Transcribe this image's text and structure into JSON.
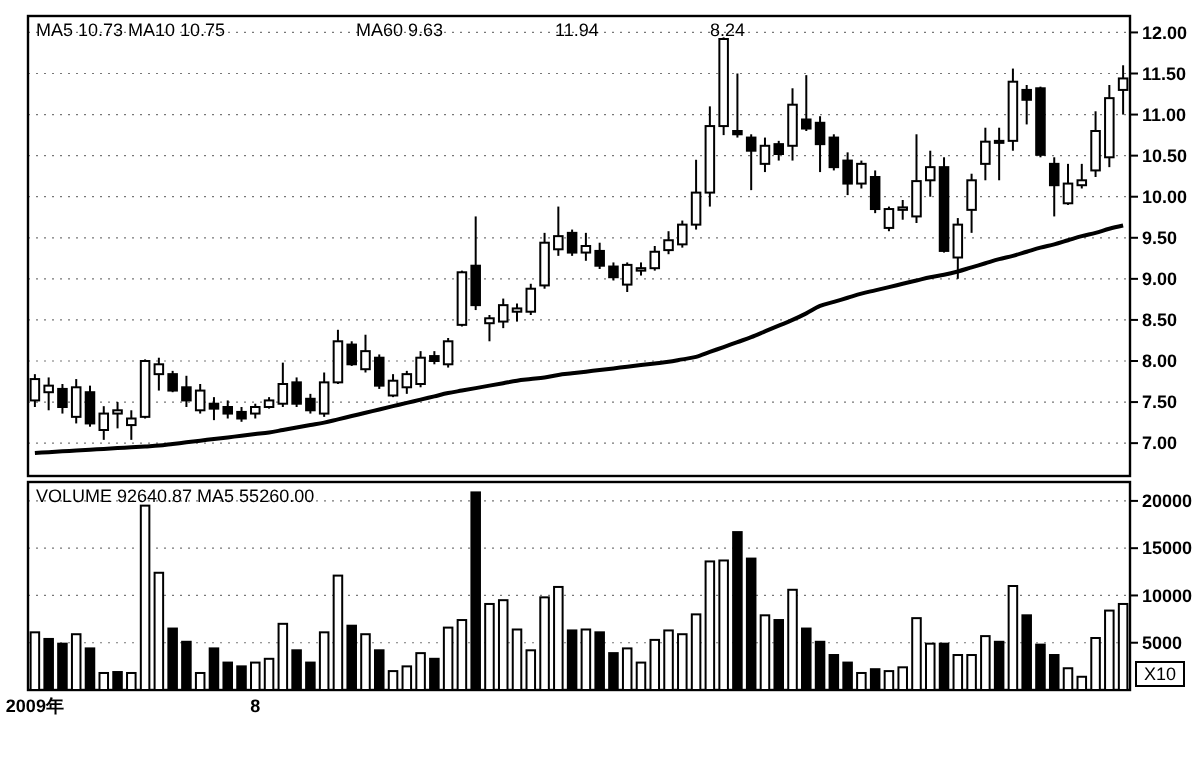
{
  "chart_data": [
    {
      "type": "candlestick",
      "categories": [
        null,
        null,
        null,
        null,
        null,
        null,
        null,
        null,
        null,
        null,
        null,
        null,
        null,
        null,
        null,
        null,
        null,
        null,
        null,
        null,
        null,
        null,
        null,
        null,
        null,
        null,
        null,
        null,
        null,
        null,
        null,
        null,
        null,
        null,
        null,
        null,
        null,
        null,
        null,
        null,
        null,
        null,
        null,
        null,
        null,
        null,
        null,
        null,
        null,
        null,
        null,
        null,
        null,
        null,
        null,
        null,
        null,
        null,
        null,
        null,
        null,
        null,
        null,
        null,
        null,
        null,
        null,
        null,
        null,
        null,
        null,
        null,
        null,
        null,
        null,
        null,
        null,
        null,
        null,
        null
      ],
      "ohlc": [
        [
          7.52,
          7.84,
          7.44,
          7.78
        ],
        [
          7.62,
          7.8,
          7.4,
          7.7
        ],
        [
          7.66,
          7.72,
          7.36,
          7.44
        ],
        [
          7.32,
          7.78,
          7.24,
          7.68
        ],
        [
          7.62,
          7.7,
          7.2,
          7.24
        ],
        [
          7.16,
          7.45,
          7.04,
          7.36
        ],
        [
          7.36,
          7.5,
          7.18,
          7.4
        ],
        [
          7.22,
          7.4,
          7.04,
          7.3
        ],
        [
          7.32,
          8.02,
          7.3,
          8.0
        ],
        [
          7.84,
          8.04,
          7.64,
          7.96
        ],
        [
          7.84,
          7.88,
          7.62,
          7.64
        ],
        [
          7.68,
          7.82,
          7.44,
          7.52
        ],
        [
          7.4,
          7.72,
          7.36,
          7.64
        ],
        [
          7.48,
          7.56,
          7.28,
          7.42
        ],
        [
          7.44,
          7.52,
          7.3,
          7.36
        ],
        [
          7.38,
          7.44,
          7.26,
          7.3
        ],
        [
          7.36,
          7.48,
          7.3,
          7.44
        ],
        [
          7.44,
          7.56,
          7.42,
          7.52
        ],
        [
          7.48,
          7.98,
          7.44,
          7.72
        ],
        [
          7.74,
          7.8,
          7.44,
          7.48
        ],
        [
          7.54,
          7.6,
          7.36,
          7.4
        ],
        [
          7.36,
          7.86,
          7.32,
          7.74
        ],
        [
          7.74,
          8.38,
          7.72,
          8.24
        ],
        [
          8.2,
          8.24,
          7.94,
          7.96
        ],
        [
          7.9,
          8.32,
          7.86,
          8.12
        ],
        [
          8.04,
          8.08,
          7.66,
          7.7
        ],
        [
          7.58,
          7.84,
          7.56,
          7.76
        ],
        [
          7.68,
          7.88,
          7.6,
          7.84
        ],
        [
          7.72,
          8.12,
          7.68,
          8.04
        ],
        [
          8.06,
          8.12,
          7.96,
          8.0
        ],
        [
          7.96,
          8.28,
          7.92,
          8.24
        ],
        [
          8.44,
          9.1,
          8.42,
          9.08
        ],
        [
          9.16,
          9.76,
          8.62,
          8.68
        ],
        [
          8.46,
          8.56,
          8.24,
          8.52
        ],
        [
          8.48,
          8.76,
          8.4,
          8.68
        ],
        [
          8.6,
          8.7,
          8.48,
          8.64
        ],
        [
          8.6,
          8.94,
          8.56,
          8.88
        ],
        [
          8.92,
          9.56,
          8.88,
          9.44
        ],
        [
          9.36,
          9.88,
          9.28,
          9.52
        ],
        [
          9.56,
          9.6,
          9.28,
          9.32
        ],
        [
          9.32,
          9.56,
          9.22,
          9.4
        ],
        [
          9.34,
          9.44,
          9.12,
          9.16
        ],
        [
          9.15,
          9.2,
          8.98,
          9.02
        ],
        [
          8.93,
          9.2,
          8.84,
          9.17
        ],
        [
          9.1,
          9.2,
          9.04,
          9.13
        ],
        [
          9.13,
          9.4,
          9.1,
          9.33
        ],
        [
          9.35,
          9.58,
          9.3,
          9.47
        ],
        [
          9.42,
          9.71,
          9.38,
          9.66
        ],
        [
          9.66,
          10.45,
          9.6,
          10.05
        ],
        [
          10.05,
          11.1,
          9.88,
          10.86
        ],
        [
          10.86,
          11.94,
          10.75,
          11.92
        ],
        [
          10.8,
          11.5,
          10.72,
          10.76
        ],
        [
          10.72,
          10.76,
          10.08,
          10.56
        ],
        [
          10.4,
          10.72,
          10.3,
          10.62
        ],
        [
          10.64,
          10.68,
          10.44,
          10.52
        ],
        [
          10.62,
          11.32,
          10.44,
          11.12
        ],
        [
          10.94,
          11.48,
          10.8,
          10.83
        ],
        [
          10.9,
          10.98,
          10.3,
          10.64
        ],
        [
          10.72,
          10.76,
          10.32,
          10.36
        ],
        [
          10.44,
          10.54,
          10.02,
          10.16
        ],
        [
          10.16,
          10.44,
          10.1,
          10.4
        ],
        [
          10.24,
          10.32,
          9.8,
          9.85
        ],
        [
          9.62,
          9.88,
          9.58,
          9.85
        ],
        [
          9.84,
          9.96,
          9.72,
          9.87
        ],
        [
          9.76,
          10.76,
          9.68,
          10.19
        ],
        [
          10.2,
          10.56,
          10.0,
          10.36
        ],
        [
          10.36,
          10.48,
          9.32,
          9.34
        ],
        [
          9.26,
          9.74,
          9.0,
          9.66
        ],
        [
          9.84,
          10.28,
          9.56,
          10.2
        ],
        [
          10.4,
          10.84,
          10.2,
          10.67
        ],
        [
          10.66,
          10.84,
          10.2,
          10.68
        ],
        [
          10.68,
          11.56,
          10.56,
          11.4
        ],
        [
          11.3,
          11.36,
          10.88,
          11.18
        ],
        [
          11.32,
          11.34,
          10.48,
          10.51
        ],
        [
          10.4,
          10.48,
          9.76,
          10.14
        ],
        [
          9.92,
          10.4,
          9.9,
          10.16
        ],
        [
          10.14,
          10.4,
          10.1,
          10.2
        ],
        [
          10.32,
          11.04,
          10.24,
          10.8
        ],
        [
          10.48,
          11.36,
          10.36,
          11.2
        ],
        [
          11.3,
          11.6,
          11.0,
          11.44
        ]
      ],
      "series": [
        {
          "type": "line",
          "color": "#000000",
          "values": [
            6.88,
            6.89,
            6.9,
            6.91,
            6.92,
            6.93,
            6.94,
            6.95,
            6.96,
            6.97,
            6.99,
            7.01,
            7.03,
            7.05,
            7.07,
            7.09,
            7.11,
            7.13,
            7.16,
            7.19,
            7.22,
            7.25,
            7.29,
            7.33,
            7.37,
            7.41,
            7.45,
            7.49,
            7.53,
            7.57,
            7.61,
            7.64,
            7.67,
            7.7,
            7.73,
            7.76,
            7.78,
            7.8,
            7.83,
            7.85,
            7.87,
            7.89,
            7.91,
            7.93,
            7.95,
            7.97,
            7.99,
            8.02,
            8.05,
            8.11,
            8.17,
            8.23,
            8.29,
            8.36,
            8.43,
            8.5,
            8.58,
            8.67,
            8.72,
            8.77,
            8.82,
            8.86,
            8.9,
            8.94,
            8.98,
            9.02,
            9.05,
            9.09,
            9.14,
            9.19,
            9.24,
            9.28,
            9.33,
            9.38,
            9.42,
            9.47,
            9.52,
            9.56,
            9.61,
            9.65
          ]
        }
      ],
      "ylim": [
        6.6,
        12.2
      ],
      "yticks": [
        {
          "value": 7,
          "label": "7.00"
        },
        {
          "value": 7.5,
          "label": "7.50"
        },
        {
          "value": 8,
          "label": "8.00"
        },
        {
          "value": 8.5,
          "label": "8.50"
        },
        {
          "value": 9,
          "label": "9.00"
        },
        {
          "value": 9.5,
          "label": "9.50"
        },
        {
          "value": 10,
          "label": "10.00"
        },
        {
          "value": 10.5,
          "label": "10.50"
        },
        {
          "value": 11,
          "label": "11.00"
        },
        {
          "value": 11.5,
          "label": "11.50"
        },
        {
          "value": 12,
          "label": "12.00"
        }
      ],
      "grid": "y",
      "tick_labels": "y",
      "annotations": [
        "MA5 10.73 MA10 10.75",
        "MA60 9.63",
        "11.94",
        "8.24"
      ]
    },
    {
      "type": "bar",
      "categories": [
        "2009年",
        null,
        null,
        null,
        null,
        null,
        null,
        null,
        null,
        null,
        null,
        null,
        null,
        null,
        null,
        null,
        "8",
        null,
        null,
        null,
        null,
        null,
        null,
        null,
        null,
        null,
        null,
        null,
        null,
        null,
        null,
        null,
        null,
        null,
        null,
        null,
        null,
        null,
        null,
        null,
        null,
        null,
        null,
        null,
        null,
        null,
        null,
        null,
        null,
        null,
        null,
        null,
        null,
        null,
        null,
        null,
        null,
        null,
        null,
        null,
        null,
        null,
        null,
        null,
        null,
        null,
        null,
        null,
        null,
        null,
        null,
        null,
        null,
        null,
        null,
        null,
        null,
        null,
        null,
        null
      ],
      "values": [
        6100,
        5400,
        4900,
        5900,
        4400,
        1800,
        1900,
        1800,
        19500,
        12400,
        6500,
        5100,
        1800,
        4400,
        2900,
        2500,
        2900,
        3300,
        7000,
        4200,
        2900,
        6100,
        12100,
        6800,
        5900,
        4200,
        2000,
        2500,
        3900,
        3300,
        6600,
        7400,
        20900,
        9100,
        9500,
        6400,
        4200,
        9800,
        10900,
        6300,
        6400,
        6100,
        3900,
        4400,
        2900,
        5300,
        6300,
        5900,
        8000,
        13600,
        13700,
        16700,
        13900,
        7900,
        7400,
        10600,
        6500,
        5100,
        3700,
        2900,
        1800,
        2200,
        2000,
        2400,
        7600,
        4900,
        4900,
        3700,
        3700,
        5700,
        5100,
        11000,
        7900,
        4800,
        3700,
        2300,
        1400,
        5500,
        8400,
        9100
      ],
      "colors": [
        "#ffffff",
        "#000000",
        "#000000",
        "#ffffff",
        "#000000",
        "#ffffff",
        "#000000",
        "#ffffff",
        "#ffffff",
        "#ffffff",
        "#000000",
        "#000000",
        "#ffffff",
        "#000000",
        "#000000",
        "#000000",
        "#ffffff",
        "#ffffff",
        "#ffffff",
        "#000000",
        "#000000",
        "#ffffff",
        "#ffffff",
        "#000000",
        "#ffffff",
        "#000000",
        "#ffffff",
        "#ffffff",
        "#ffffff",
        "#000000",
        "#ffffff",
        "#ffffff",
        "#000000",
        "#ffffff",
        "#ffffff",
        "#ffffff",
        "#ffffff",
        "#ffffff",
        "#ffffff",
        "#000000",
        "#ffffff",
        "#000000",
        "#000000",
        "#ffffff",
        "#ffffff",
        "#ffffff",
        "#ffffff",
        "#ffffff",
        "#ffffff",
        "#ffffff",
        "#ffffff",
        "#000000",
        "#000000",
        "#ffffff",
        "#000000",
        "#ffffff",
        "#000000",
        "#000000",
        "#000000",
        "#000000",
        "#ffffff",
        "#000000",
        "#ffffff",
        "#ffffff",
        "#ffffff",
        "#ffffff",
        "#000000",
        "#ffffff",
        "#ffffff",
        "#ffffff",
        "#000000",
        "#ffffff",
        "#000000",
        "#000000",
        "#000000",
        "#ffffff",
        "#ffffff",
        "#ffffff",
        "#ffffff",
        "#ffffff"
      ],
      "ylim": [
        0,
        22000
      ],
      "yticks": [
        5000,
        10000,
        15000,
        20000
      ],
      "grid": "y",
      "tick_labels": "y",
      "ylabel": "X10",
      "annotations": [
        "VOLUME 92640.87 MA5 55260.00"
      ]
    }
  ]
}
